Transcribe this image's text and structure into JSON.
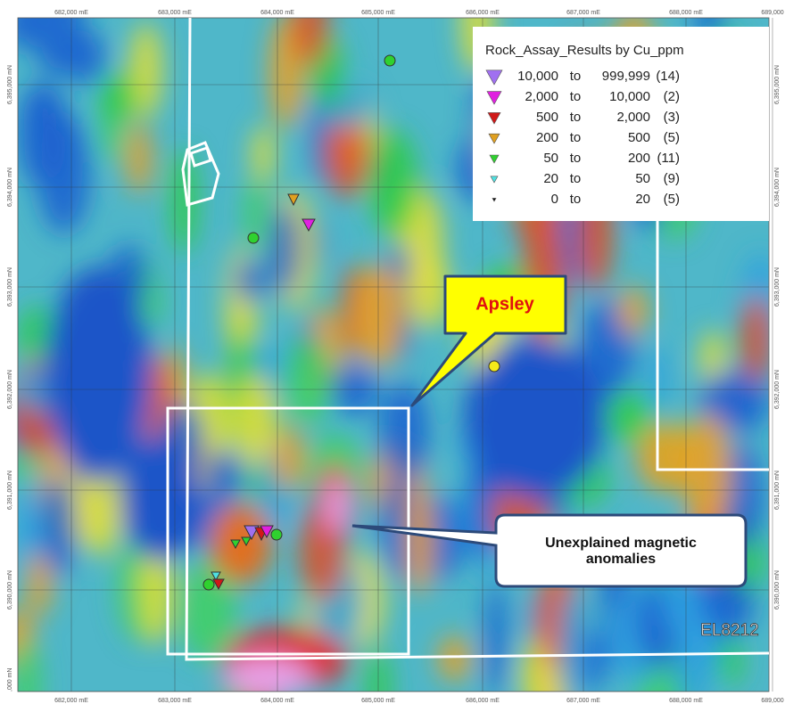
{
  "map": {
    "top_labels": [
      "682,000 mE",
      "683,000 mE",
      "684,000 mE",
      "685,000 mE",
      "686,000 mE",
      "687,000 mE",
      "688,000 mE",
      "689,000"
    ],
    "bottom_labels": [
      "682,000 mE",
      "683,000 mE",
      "684,000 mE",
      "685,000 mE",
      "686,000 mE",
      "687,000 mE",
      "688,000 mE",
      "689,000"
    ],
    "left_labels": [
      "6,395,000 mN",
      "6,394,000 mN",
      "6,393,000 mN",
      "6,392,000 mN",
      "6,391,000 mN",
      "6,390,000 mN",
      ",000 mN"
    ],
    "right_labels": [
      "6,395,000 mN",
      "6,394,000 mN",
      "6,393,000 mN",
      "6,392,000 mN",
      "6,391,000 mN",
      "6,390,000 mN"
    ],
    "legend": {
      "title": "Rock_Assay_Results by Cu_ppm",
      "rows": [
        {
          "from": "10,000",
          "to_word": "to",
          "to": "999,999",
          "count": "(14)"
        },
        {
          "from": "2,000",
          "to_word": "to",
          "to": "10,000",
          "count": "(2)"
        },
        {
          "from": "500",
          "to_word": "to",
          "to": "2,000",
          "count": "(3)"
        },
        {
          "from": "200",
          "to_word": "to",
          "to": "500",
          "count": "(5)"
        },
        {
          "from": "50",
          "to_word": "to",
          "to": "200",
          "count": "(11)"
        },
        {
          "from": "20",
          "to_word": "to",
          "to": "50",
          "count": "(9)"
        },
        {
          "from": "0",
          "to_word": "to",
          "to": "20",
          "count": "(5)"
        }
      ]
    },
    "callouts": {
      "apsley": "Apsley",
      "anomalies": "Unexplained magnetic anomalies",
      "licence": "EL8212"
    }
  }
}
